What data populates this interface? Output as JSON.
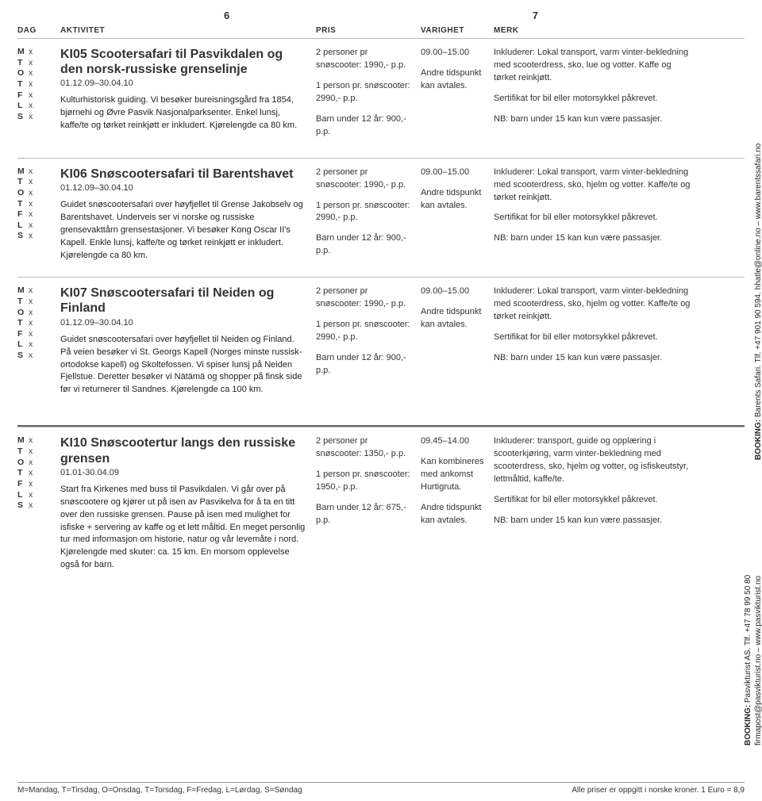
{
  "page_left": "6",
  "page_right": "7",
  "headers": {
    "dag": "DAG",
    "aktivitet": "AKTIVITET",
    "pris": "PRIS",
    "varighet": "VARIGHET",
    "merk": "MERK"
  },
  "days_labels": [
    "M",
    "T",
    "O",
    "T",
    "F",
    "L",
    "S"
  ],
  "day_mark": "x",
  "rows": [
    {
      "code": "KI05",
      "title": "Scootersafari til Pasvikdalen og den norsk-russiske grenselinje",
      "date": "01.12.09–30.04.10",
      "desc": "Kulturhistorisk guiding. Vi besøker bureisningsgård fra 1854, bjørnehi og Øvre Pasvik Nasjonalparksenter. Enkel lunsj, kaffe/te og tørket reinkjøtt er inkludert. Kjørelengde ca 80 km.",
      "pris1": "2 personer pr snøscooter: 1990,- p.p.",
      "pris2": "1 person pr. snøscooter: 2990,- p.p.",
      "pris3": "Barn under 12 år: 900,- p.p.",
      "var1": "09.00–15.00",
      "var2": "Andre tidspunkt kan avtales.",
      "merk1": "Inkluderer: Lokal transport, varm vinter-bekledning med scooterdress, sko, lue og votter. Kaffe og tørket reinkjøtt.",
      "merk2": "Sertifikat for bil eller motorsykkel påkrevet.",
      "merk3": "NB: barn under 15 kan kun være passasjer."
    },
    {
      "code": "KI06",
      "title": "Snøscootersafari til Barentshavet",
      "date": "01.12.09–30.04.10",
      "desc": "Guidet snøscootersafari over høyfjellet til Grense Jakobselv og Barentshavet. Underveis ser vi norske og russiske grensevakttårn grensestasjoner. Vi besøker Kong Oscar II's Kapell. Enkle lunsj, kaffe/te og tørket reinkjøtt er inkludert. Kjørelengde ca 80 km.",
      "pris1": "2 personer pr snøscooter: 1990,- p.p.",
      "pris2": "1 person pr. snøscooter: 2990,- p.p.",
      "pris3": "Barn under 12 år: 900,- p.p.",
      "var1": "09.00–15.00",
      "var2": "Andre tidspunkt kan avtales.",
      "merk1": "Inkluderer: Lokal transport, varm vinter-bekledning med scooterdress, sko, hjelm og votter. Kaffe/te og tørket reinkjøtt.",
      "merk2": "Sertifikat for bil eller motorsykkel påkrevet.",
      "merk3": "NB: barn under 15 kan kun være passasjer."
    },
    {
      "code": "KI07",
      "title": "Snøscootersafari til Neiden og Finland",
      "date": "01.12.09–30.04.10",
      "desc": "Guidet snøscootersafari over høyfjellet til Neiden og Finland. På veien besøker vi St. Georgs Kapell (Norges minste russisk-ortodokse kapell) og Skoltefossen. Vi spiser lunsj på Neiden Fjellstue. Deretter besøker vi Nätämä og shopper på finsk side før vi returnerer til Sandnes. Kjørelengde ca 100 km.",
      "pris1": "2 personer pr snøscooter: 1990,- p.p.",
      "pris2": "1 person pr. snøscooter: 2990,- p.p.",
      "pris3": "Barn under 12 år: 900,- p.p.",
      "var1": "09.00–15.00",
      "var2": "Andre tidspunkt kan avtales.",
      "merk1": "Inkluderer: Lokal transport, varm vinter-bekledning med scooterdress, sko, hjelm og votter. Kaffe/te og tørket reinkjøtt.",
      "merk2": "Sertifikat for bil eller motorsykkel påkrevet.",
      "merk3": "NB: barn under 15 kan kun være passasjer."
    },
    {
      "code": "KI10",
      "title": "Snøscootertur langs den russiske grensen",
      "date": "01.01-30.04.09",
      "desc": "Start fra Kirkenes med buss til Pasvikdalen. Vi går over på snøscootere og kjører ut på isen av Pasvikelva for å ta en titt over den russiske grensen. Pause på isen med mulighet for isfiske + servering av kaffe og et lett måltid. En meget personlig tur med informasjon om historie, natur og vår levemåte i nord. Kjørelengde med skuter: ca. 15 km. En morsom opplevelse også for barn.",
      "pris1": "2 personer pr snøscooter: 1350,- p.p.",
      "pris2": "1 person pr. snøscooter: 1950,- p.p.",
      "pris3": "Barn under 12 år: 675,- p.p.",
      "var1": "09.45–14.00",
      "var2": "Kan kombineres med ankomst Hurtigruta.",
      "var3": "Andre tidspunkt kan avtales.",
      "merk1": "Inkluderer: transport, guide og opplæring i scooterkjøring, varm vinter-bekledning med scooterdress, sko, hjelm og votter, og isfiskeutstyr, lettmåltid, kaffe/te.",
      "merk2": "Sertifikat for bil eller motorsykkel påkrevet.",
      "merk3": "NB: barn under 15 kan kun være passasjer."
    }
  ],
  "sidebar_a_label": "BOOKING:",
  "sidebar_a_text": " Barents Safari. Tlf. +47 901 90 594. hhatle@online.no – www.barentssafari.no",
  "sidebar_b_label": "BOOKING:",
  "sidebar_b_text": " Pasvikturist AS. Tlf. +47 78 99 50 80\nfirmapost@pasvikturist.no – www.pasvikturist.no",
  "footer_left": "M=Mandag, T=Tirsdag, O=Onsdag, T=Torsdag, F=Fredag, L=Lørdag, S=Søndag",
  "footer_right": "Alle priser er oppgitt i norske kroner. 1 Euro = 8,9"
}
